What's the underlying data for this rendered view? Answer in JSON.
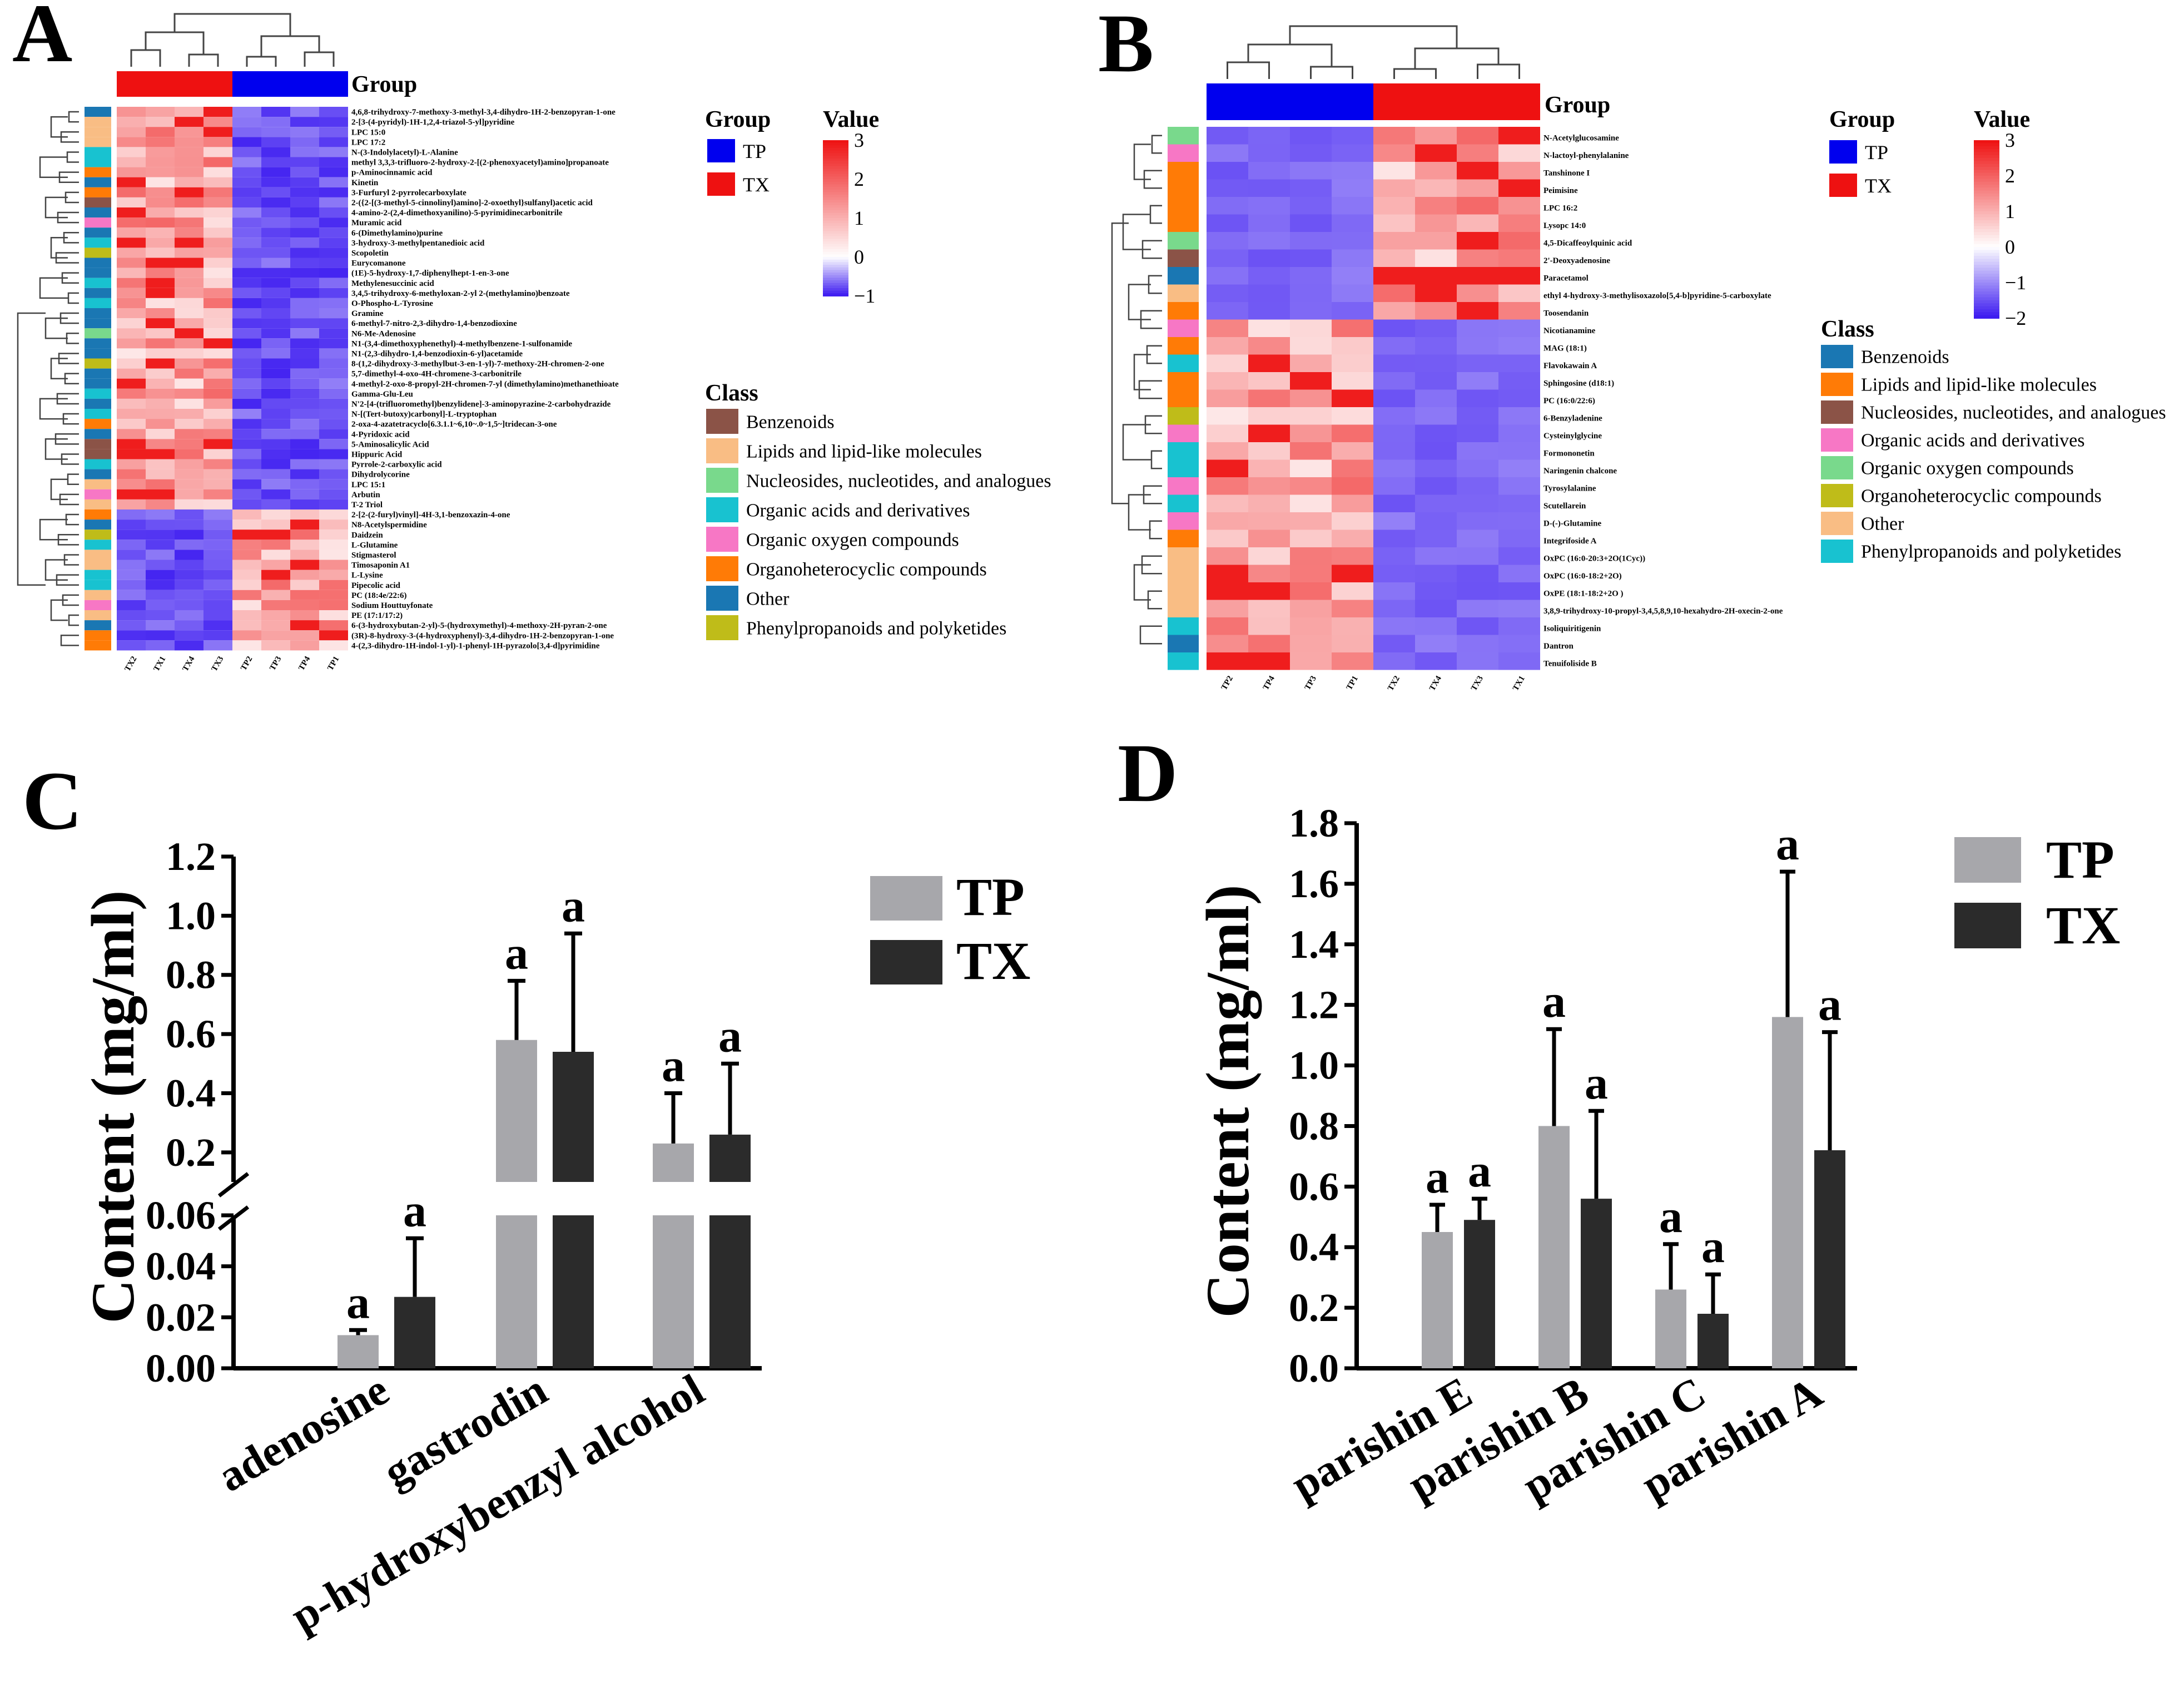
{
  "panels": {
    "A": {
      "letter": "A",
      "group_title": "Group",
      "value_title": "Value",
      "class_title": "Class",
      "columns": [
        "TX2",
        "TX1",
        "TX4",
        "TX3",
        "TP2",
        "TP3",
        "TP4",
        "TP1"
      ],
      "column_groups": [
        "TX",
        "TX",
        "TX",
        "TX",
        "TP",
        "TP",
        "TP",
        "TP"
      ],
      "group_legend": [
        {
          "name": "TP",
          "color": "#0000ee"
        },
        {
          "name": "TX",
          "color": "#ee1111"
        }
      ],
      "value_ticks": [
        "3",
        "2",
        "1",
        "0",
        "−1"
      ],
      "value_range": [
        -1,
        3
      ],
      "class_legend": [
        {
          "name": "Benzenoids",
          "color": "#8b5347"
        },
        {
          "name": "Lipids and lipid-like molecules",
          "color": "#f9bd84"
        },
        {
          "name": "Nucleosides, nucleotides, and analogues",
          "color": "#79d98c"
        },
        {
          "name": "Organic acids and derivatives",
          "color": "#18c2d0"
        },
        {
          "name": "Organic oxygen compounds",
          "color": "#f777c5"
        },
        {
          "name": "Organoheterocyclic compounds",
          "color": "#ff7b06"
        },
        {
          "name": "Other",
          "color": "#1a77b3"
        },
        {
          "name": "Phenylpropanoids and polyketides",
          "color": "#bfbc19"
        }
      ],
      "rows": [
        "4,6,8-trihydroxy-7-methoxy-3-methyl-3,4-dihydro-1H-2-benzopyran-1-one",
        "2-[3-(4-pyridyl)-1H-1,2,4-triazol-5-yl]pyridine",
        "LPC 15:0",
        "LPC 17:2",
        "N-(3-Indolylacetyl)-L-Alanine",
        "methyl 3,3,3-trifluoro-2-hydroxy-2-[(2-phenoxyacetyl)amino]propanoate",
        "p-Aminocinnamic acid",
        "Kinetin",
        "3-Furfuryl 2-pyrrolecarboxylate",
        "2-({2-[(3-methyl-5-cinnolinyl)amino]-2-oxoethyl}sulfanyl)acetic acid",
        "4-amino-2-(2,4-dimethoxyanilino)-5-pyrimidinecarbonitrile",
        "Muramic acid",
        "6-(Dimethylamino)purine",
        "3-hydroxy-3-methylpentanedioic acid",
        "Scopoletin",
        "Eurycomanone",
        "(1E)-5-hydroxy-1,7-diphenylhept-1-en-3-one",
        "Methylenesuccinic acid",
        "3,4,5-trihydroxy-6-methyloxan-2-yl 2-(methylamino)benzoate",
        "O-Phospho-L-Tyrosine",
        "Gramine",
        "6-methyl-7-nitro-2,3-dihydro-1,4-benzodioxine",
        "N6-Me-Adenosine",
        "N1-(3,4-dimethoxyphenethyl)-4-methylbenzene-1-sulfonamide",
        "N1-(2,3-dihydro-1,4-benzodioxin-6-yl)acetamide",
        "8-(1,2-dihydroxy-3-methylbut-3-en-1-yl)-7-methoxy-2H-chromen-2-one",
        "5,7-dimethyl-4-oxo-4H-chromene-3-carbonitrile",
        "4-methyl-2-oxo-8-propyl-2H-chromen-7-yl (dimethylamino)methanethioate",
        "Gamma-Glu-Leu",
        "N'2-[4-(trifluoromethyl)benzylidene]-3-aminopyrazine-2-carbohydrazide",
        "N-[(Tert-butoxy)carbonyl]-L-tryptophan",
        "2-oxa-4-azatetracyclo[6.3.1.1~6,10~.0~1,5~]tridecan-3-one",
        "4-Pyridoxic acid",
        "5-Aminosalicylic Acid",
        "Hippuric Acid",
        "Pyrrole-2-carboxylic acid",
        "Dihydrolycorine",
        "LPC 15:1",
        "Arbutin",
        "T-2 Triol",
        "2-[2-(2-furyl)vinyl]-4H-3,1-benzoxazin-4-one",
        "N8-Acetylspermidine",
        "Daidzein",
        "L-Glutamine",
        "Stigmasterol",
        "Timosaponin A1",
        "L-Lysine",
        "Pipecolic acid",
        "PC (18:4e/22:6)",
        "Sodium Houttuyfonate",
        "PE (17:1/17:2)",
        "6-(3-hydroxybutan-2-yl)-5-(hydroxymethyl)-4-methoxy-2H-pyran-2-one",
        "(3R)-8-hydroxy-3-(4-hydroxyphenyl)-3,4-dihydro-1H-2-benzopyran-1-one",
        "4-(2,3-dihydro-1H-indol-1-yl)-1-phenyl-1H-pyrazolo[3,4-d]pyrimidine"
      ],
      "row_class_index": [
        6,
        1,
        1,
        1,
        3,
        3,
        5,
        6,
        5,
        0,
        6,
        4,
        6,
        3,
        7,
        6,
        6,
        3,
        6,
        3,
        6,
        6,
        2,
        6,
        6,
        7,
        6,
        6,
        3,
        6,
        3,
        5,
        6,
        0,
        0,
        3,
        6,
        1,
        4,
        1,
        5,
        6,
        7,
        3,
        1,
        1,
        3,
        3,
        1,
        4,
        1,
        6,
        5,
        5
      ]
    },
    "B": {
      "letter": "B",
      "group_title": "Group",
      "value_title": "Value",
      "class_title": "Class",
      "columns": [
        "TP2",
        "TP4",
        "TP3",
        "TP1",
        "TX2",
        "TX4",
        "TX3",
        "TX1"
      ],
      "column_groups": [
        "TP",
        "TP",
        "TP",
        "TP",
        "TX",
        "TX",
        "TX",
        "TX"
      ],
      "group_legend": [
        {
          "name": "TP",
          "color": "#0000ee"
        },
        {
          "name": "TX",
          "color": "#ee1111"
        }
      ],
      "value_ticks": [
        "3",
        "2",
        "1",
        "0",
        "−1",
        "−2"
      ],
      "value_range": [
        -2,
        3
      ],
      "class_legend": [
        {
          "name": "Benzenoids",
          "color": "#1a77b3"
        },
        {
          "name": "Lipids and lipid-like molecules",
          "color": "#ff7b06"
        },
        {
          "name": "Nucleosides, nucleotides, and analogues",
          "color": "#8b5347"
        },
        {
          "name": "Organic acids and derivatives",
          "color": "#f777c5"
        },
        {
          "name": "Organic oxygen compounds",
          "color": "#79d98c"
        },
        {
          "name": "Organoheterocyclic compounds",
          "color": "#bfbc19"
        },
        {
          "name": "Other",
          "color": "#f9bd84"
        },
        {
          "name": "Phenylpropanoids and polyketides",
          "color": "#18c2d0"
        }
      ],
      "rows": [
        "N-Acetylglucosamine",
        "N-lactoyl-phenylalanine",
        "Tanshinone I",
        "Peimisine",
        "LPC 16:2",
        "Lysopc 14:0",
        "4,5-Dicaffeoylquinic acid",
        "2'-Deoxyadenosine",
        "Paracetamol",
        "ethyl 4-hydroxy-3-methylisoxazolo[5,4-b]pyridine-5-carboxylate",
        "Toosendanin",
        "Nicotianamine",
        "MAG (18:1)",
        "Flavokawain A",
        "Sphingosine (d18:1)",
        "PC (16:0/22:6)",
        "6-Benzyladenine",
        "Cysteinylglycine",
        "Formononetin",
        "Naringenin chalcone",
        "Tyrosylalanine",
        "Scutellarein",
        "D-(-)-Glutamine",
        "Integrifoside A",
        "OxPC (16:0-20:3+2O(1Cyc))",
        "OxPC (16:0-18:2+2O)",
        "OxPE (18:1-18:2+2O )",
        "3,8,9-trihydroxy-10-propyl-3,4,5,8,9,10-hexahydro-2H-oxecin-2-one",
        "Isoliquiritigenin",
        "Dantron",
        "Tenuifoliside B"
      ],
      "row_class_index": [
        4,
        3,
        1,
        1,
        1,
        1,
        4,
        2,
        0,
        6,
        1,
        3,
        1,
        7,
        1,
        1,
        5,
        3,
        7,
        7,
        3,
        7,
        3,
        1,
        6,
        6,
        6,
        6,
        7,
        0,
        7
      ]
    },
    "C": {
      "letter": "C",
      "chart_data": {
        "type": "bar",
        "title": "",
        "xlabel": "",
        "ylabel": "Content (mg/ml)",
        "categories": [
          "adenosine",
          "gastrodin",
          "p-hydroxybenzyl alcohol"
        ],
        "series": [
          {
            "name": "TP",
            "color": "#a7a7ab",
            "values": [
              0.013,
              0.58,
              0.23
            ],
            "errors": [
              0.002,
              0.2,
              0.17
            ]
          },
          {
            "name": "TX",
            "color": "#2b2b2b",
            "values": [
              0.028,
              0.54,
              0.26
            ],
            "errors": [
              0.023,
              0.4,
              0.24
            ]
          }
        ],
        "significance": [
          [
            "a",
            "a"
          ],
          [
            "a",
            "a"
          ],
          [
            "a",
            "a"
          ]
        ],
        "axis_break": {
          "lower": [
            0,
            0.06
          ],
          "upper": [
            0.1,
            1.2
          ]
        },
        "lower_ticks": [
          "0.00",
          "0.02",
          "0.04",
          "0.06"
        ],
        "upper_ticks": [
          "0.2",
          "0.4",
          "0.6",
          "0.8",
          "1.0",
          "1.2"
        ],
        "legend": [
          "TP",
          "TX"
        ]
      }
    },
    "D": {
      "letter": "D",
      "chart_data": {
        "type": "bar",
        "title": "",
        "xlabel": "",
        "ylabel": "Content (mg/ml)",
        "categories": [
          "parishin E",
          "parishin B",
          "parishin C",
          "parishin A"
        ],
        "series": [
          {
            "name": "TP",
            "color": "#a7a7ab",
            "values": [
              0.45,
              0.8,
              0.26,
              1.16
            ],
            "errors": [
              0.09,
              0.32,
              0.15,
              0.48
            ]
          },
          {
            "name": "TX",
            "color": "#2b2b2b",
            "values": [
              0.49,
              0.56,
              0.18,
              0.72
            ],
            "errors": [
              0.07,
              0.29,
              0.13,
              0.39
            ]
          }
        ],
        "significance": [
          [
            "a",
            "a"
          ],
          [
            "a",
            "a"
          ],
          [
            "a",
            "a"
          ],
          [
            "a",
            "a"
          ]
        ],
        "ylim": [
          0,
          1.8
        ],
        "ticks": [
          "0.0",
          "0.2",
          "0.4",
          "0.6",
          "0.8",
          "1.0",
          "1.2",
          "1.4",
          "1.6",
          "1.8"
        ],
        "legend": [
          "TP",
          "TX"
        ]
      }
    }
  }
}
